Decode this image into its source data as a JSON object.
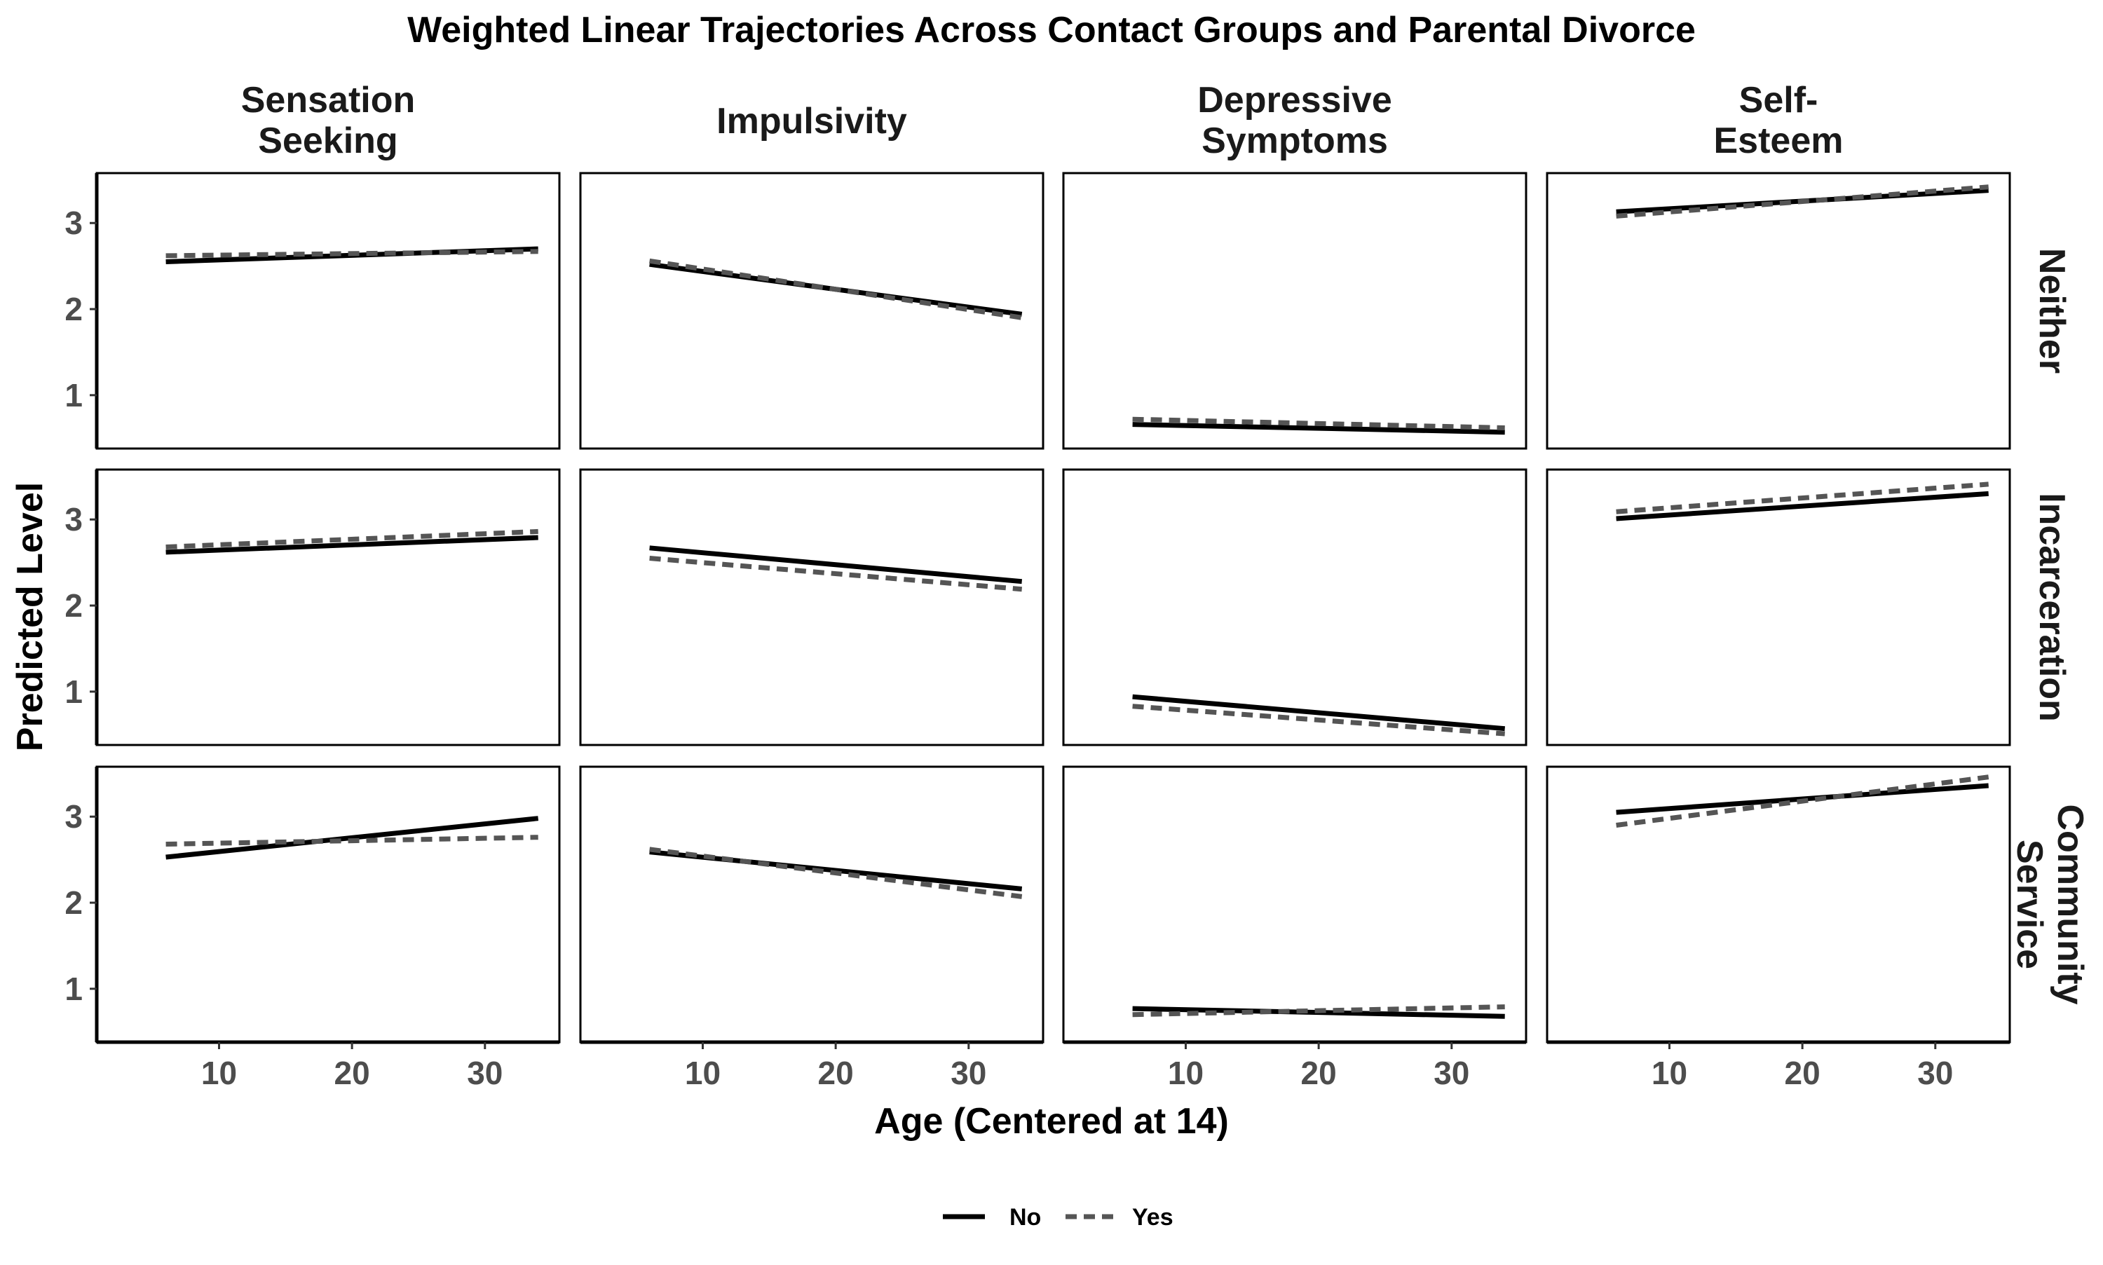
{
  "chart_data": {
    "type": "line",
    "title": "Weighted Linear Trajectories Across Contact Groups and Parental Divorce",
    "xlabel": "Age (Centered at 14)",
    "ylabel": "Predicted Level",
    "xlim": [
      0.8,
      35.6
    ],
    "ylim": [
      0.38,
      3.58
    ],
    "x_ticks": [
      10,
      20,
      30
    ],
    "y_ticks": [
      1,
      2,
      3
    ],
    "grid": false,
    "legend": {
      "position": "bottom",
      "entries": [
        {
          "label": "No",
          "color": "#000000",
          "dash": "solid"
        },
        {
          "label": "Yes",
          "color": "#555555",
          "dash": "dashed"
        }
      ]
    },
    "columns": [
      {
        "label_lines": [
          "Sensation",
          "Seeking"
        ]
      },
      {
        "label_lines": [
          "Impulsivity"
        ]
      },
      {
        "label_lines": [
          "Depressive",
          "Symptoms"
        ]
      },
      {
        "label_lines": [
          "Self-",
          "Esteem"
        ]
      }
    ],
    "rows": [
      {
        "label_lines": [
          "Neither"
        ]
      },
      {
        "label_lines": [
          "Incarceration"
        ]
      },
      {
        "label_lines": [
          "Community",
          "Service"
        ]
      }
    ],
    "panels": [
      {
        "column": 0,
        "row": 0,
        "series": [
          {
            "name": "No",
            "x": [
              6,
              34
            ],
            "y": [
              2.55,
              2.7
            ]
          },
          {
            "name": "Yes",
            "x": [
              6,
              34
            ],
            "y": [
              2.62,
              2.67
            ]
          }
        ]
      },
      {
        "column": 1,
        "row": 0,
        "series": [
          {
            "name": "No",
            "x": [
              6,
              34
            ],
            "y": [
              2.52,
              1.94
            ]
          },
          {
            "name": "Yes",
            "x": [
              6,
              34
            ],
            "y": [
              2.56,
              1.9
            ]
          }
        ]
      },
      {
        "column": 2,
        "row": 0,
        "series": [
          {
            "name": "No",
            "x": [
              6,
              34
            ],
            "y": [
              0.66,
              0.57
            ]
          },
          {
            "name": "Yes",
            "x": [
              6,
              34
            ],
            "y": [
              0.72,
              0.62
            ]
          }
        ]
      },
      {
        "column": 3,
        "row": 0,
        "series": [
          {
            "name": "No",
            "x": [
              6,
              34
            ],
            "y": [
              3.13,
              3.38
            ]
          },
          {
            "name": "Yes",
            "x": [
              6,
              34
            ],
            "y": [
              3.08,
              3.42
            ]
          }
        ]
      },
      {
        "column": 0,
        "row": 1,
        "series": [
          {
            "name": "No",
            "x": [
              6,
              34
            ],
            "y": [
              2.62,
              2.79
            ]
          },
          {
            "name": "Yes",
            "x": [
              6,
              34
            ],
            "y": [
              2.68,
              2.86
            ]
          }
        ]
      },
      {
        "column": 1,
        "row": 1,
        "series": [
          {
            "name": "No",
            "x": [
              6,
              34
            ],
            "y": [
              2.67,
              2.28
            ]
          },
          {
            "name": "Yes",
            "x": [
              6,
              34
            ],
            "y": [
              2.55,
              2.19
            ]
          }
        ]
      },
      {
        "column": 2,
        "row": 1,
        "series": [
          {
            "name": "No",
            "x": [
              6,
              34
            ],
            "y": [
              0.94,
              0.57
            ]
          },
          {
            "name": "Yes",
            "x": [
              6,
              34
            ],
            "y": [
              0.83,
              0.51
            ]
          }
        ]
      },
      {
        "column": 3,
        "row": 1,
        "series": [
          {
            "name": "No",
            "x": [
              6,
              34
            ],
            "y": [
              3.01,
              3.3
            ]
          },
          {
            "name": "Yes",
            "x": [
              6,
              34
            ],
            "y": [
              3.09,
              3.41
            ]
          }
        ]
      },
      {
        "column": 0,
        "row": 2,
        "series": [
          {
            "name": "No",
            "x": [
              6,
              34
            ],
            "y": [
              2.53,
              2.98
            ]
          },
          {
            "name": "Yes",
            "x": [
              6,
              34
            ],
            "y": [
              2.68,
              2.76
            ]
          }
        ]
      },
      {
        "column": 1,
        "row": 2,
        "series": [
          {
            "name": "No",
            "x": [
              6,
              34
            ],
            "y": [
              2.59,
              2.16
            ]
          },
          {
            "name": "Yes",
            "x": [
              6,
              34
            ],
            "y": [
              2.62,
              2.07
            ]
          }
        ]
      },
      {
        "column": 2,
        "row": 2,
        "series": [
          {
            "name": "No",
            "x": [
              6,
              34
            ],
            "y": [
              0.77,
              0.68
            ]
          },
          {
            "name": "Yes",
            "x": [
              6,
              34
            ],
            "y": [
              0.7,
              0.79
            ]
          }
        ]
      },
      {
        "column": 3,
        "row": 2,
        "series": [
          {
            "name": "No",
            "x": [
              6,
              34
            ],
            "y": [
              3.05,
              3.36
            ]
          },
          {
            "name": "Yes",
            "x": [
              6,
              34
            ],
            "y": [
              2.9,
              3.46
            ]
          }
        ]
      }
    ]
  }
}
